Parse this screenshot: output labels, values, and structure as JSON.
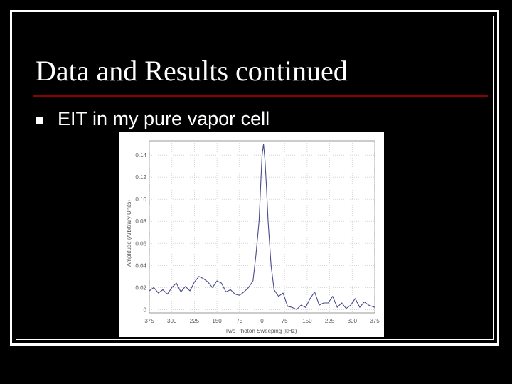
{
  "slide": {
    "title": "Data and Results continued",
    "bullet": "EIT in my pure vapor cell",
    "rule_color": "#8b0000"
  },
  "chart_data": {
    "type": "line",
    "title": "",
    "xlabel": "Two Photon Sweeping (kHz)",
    "ylabel": "Amplitude (Arbitrary Units)",
    "xlim": [
      -375,
      375
    ],
    "ylim": [
      -0.003,
      0.153
    ],
    "x_tick_values": [
      -375,
      -300,
      -225,
      -150,
      -75,
      0,
      75,
      150,
      225,
      300,
      375
    ],
    "x_tick_labels": [
      "375",
      "300",
      "225",
      "150",
      "75",
      "0",
      "75",
      "150",
      "225",
      "300",
      "375"
    ],
    "y_tick_values": [
      0,
      0.02,
      0.04,
      0.06,
      0.08,
      0.1,
      0.12,
      0.14
    ],
    "y_tick_labels": [
      "0",
      "0.02",
      "0.04",
      "0.06",
      "0.08",
      "0.10",
      "0.12",
      "0.14"
    ],
    "grid": true,
    "line_color": "#4a4a8c",
    "series": [
      {
        "x": [
          -375,
          -360,
          -345,
          -330,
          -315,
          -300,
          -285,
          -270,
          -255,
          -240,
          -225,
          -210,
          -195,
          -180,
          -165,
          -150,
          -135,
          -120,
          -105,
          -90,
          -75,
          -60,
          -45,
          -30,
          -20,
          -10,
          -5,
          0,
          5,
          10,
          15,
          20,
          30,
          40,
          55,
          70,
          85,
          100,
          115,
          130,
          145,
          160,
          175,
          190,
          205,
          220,
          235,
          250,
          265,
          280,
          295,
          310,
          325,
          340,
          355,
          375
        ],
        "y": [
          0.017,
          0.02,
          0.015,
          0.018,
          0.014,
          0.02,
          0.024,
          0.016,
          0.021,
          0.017,
          0.025,
          0.03,
          0.028,
          0.025,
          0.02,
          0.026,
          0.024,
          0.016,
          0.018,
          0.014,
          0.013,
          0.016,
          0.02,
          0.026,
          0.05,
          0.08,
          0.11,
          0.14,
          0.15,
          0.135,
          0.11,
          0.08,
          0.04,
          0.018,
          0.012,
          0.015,
          0.003,
          0.002,
          0.0,
          0.004,
          0.002,
          0.01,
          0.016,
          0.004,
          0.006,
          0.006,
          0.012,
          0.002,
          0.006,
          0.001,
          0.004,
          0.01,
          0.002,
          0.007,
          0.004,
          0.002
        ]
      }
    ]
  }
}
